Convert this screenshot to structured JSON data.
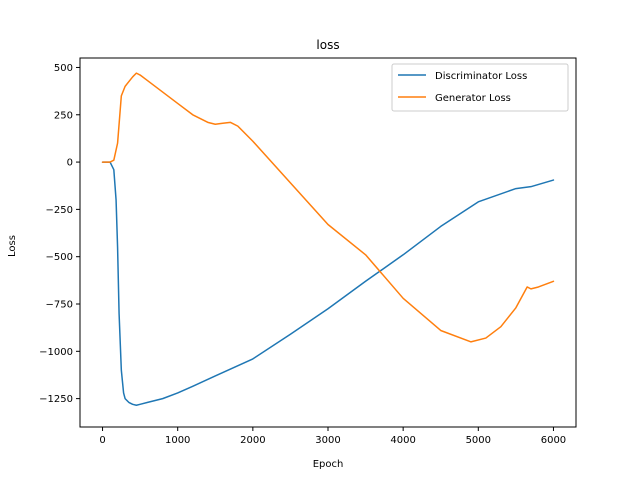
{
  "chart_data": {
    "type": "line",
    "title": "loss",
    "xlabel": "Epoch",
    "ylabel": "Loss",
    "xlim": [
      -300,
      6300
    ],
    "ylim": [
      -1400,
      550
    ],
    "xticks": [
      0,
      1000,
      2000,
      3000,
      4000,
      5000,
      6000
    ],
    "yticks": [
      500,
      250,
      0,
      -250,
      -500,
      -750,
      -1000,
      -1250
    ],
    "grid": false,
    "legend_position": "top-right",
    "series": [
      {
        "name": "Discriminator Loss",
        "color": "#1f77b4",
        "x": [
          0,
          100,
          150,
          180,
          200,
          220,
          250,
          280,
          300,
          350,
          400,
          450,
          500,
          600,
          700,
          800,
          1000,
          1200,
          1500,
          2000,
          2500,
          3000,
          3500,
          4000,
          4500,
          5000,
          5500,
          5700,
          6000
        ],
        "y": [
          0,
          0,
          -40,
          -200,
          -450,
          -800,
          -1100,
          -1220,
          -1250,
          -1270,
          -1280,
          -1285,
          -1280,
          -1270,
          -1260,
          -1250,
          -1220,
          -1185,
          -1130,
          -1040,
          -910,
          -775,
          -630,
          -490,
          -340,
          -210,
          -140,
          -130,
          -95
        ]
      },
      {
        "name": "Generator Loss",
        "color": "#ff7f0e",
        "x": [
          0,
          100,
          150,
          200,
          250,
          300,
          400,
          450,
          500,
          600,
          800,
          1000,
          1200,
          1400,
          1500,
          1600,
          1700,
          1800,
          2000,
          2500,
          3000,
          3500,
          4000,
          4500,
          4900,
          5100,
          5300,
          5500,
          5650,
          5700,
          5800,
          6000
        ],
        "y": [
          0,
          0,
          10,
          100,
          350,
          400,
          450,
          470,
          460,
          430,
          370,
          310,
          250,
          210,
          200,
          205,
          210,
          190,
          110,
          -110,
          -330,
          -490,
          -720,
          -890,
          -950,
          -930,
          -870,
          -770,
          -660,
          -670,
          -660,
          -630
        ]
      }
    ]
  }
}
